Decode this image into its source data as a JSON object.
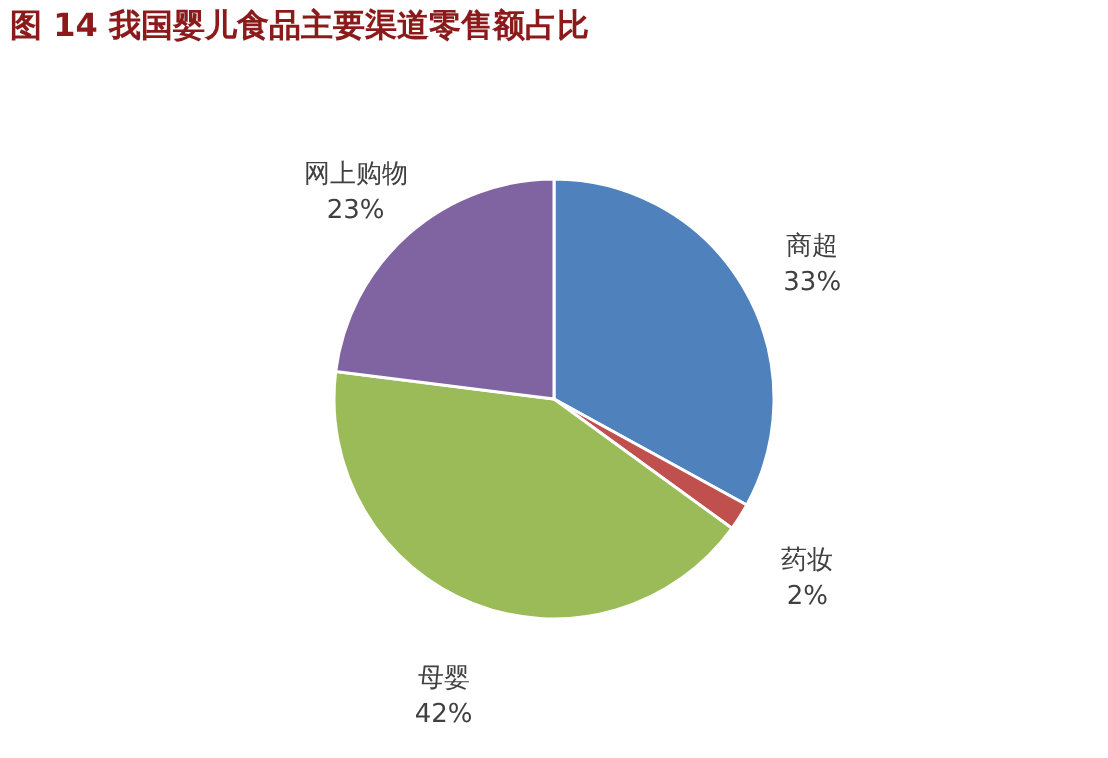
{
  "chart_data": {
    "type": "pie",
    "title": "图 14 我国婴儿食品主要渠道零售额占比",
    "categories": [
      "商超",
      "药妆",
      "母婴",
      "网上购物"
    ],
    "values": [
      33,
      2,
      42,
      23
    ],
    "colors": [
      "#4f81bd",
      "#c0504d",
      "#9bbb59",
      "#8064a2"
    ],
    "value_labels": [
      "33%",
      "2%",
      "42%",
      "23%"
    ],
    "legend": false
  }
}
